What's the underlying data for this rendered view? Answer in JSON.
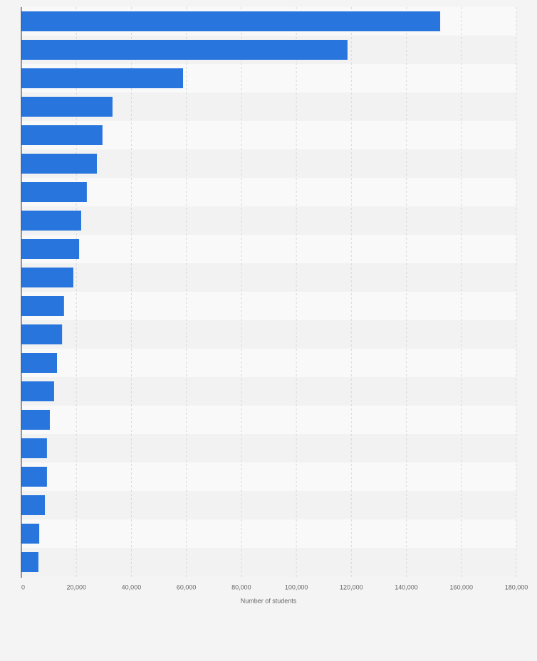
{
  "chart_data": {
    "type": "bar",
    "orientation": "horizontal",
    "categories": [
      null,
      null,
      null,
      null,
      null,
      null,
      null,
      null,
      null,
      null,
      null,
      null,
      null,
      null,
      null,
      null,
      null,
      null,
      null,
      null
    ],
    "values": [
      152300,
      118600,
      58800,
      33150,
      29500,
      27450,
      23800,
      21750,
      21000,
      18900,
      15500,
      14800,
      12950,
      11900,
      10350,
      9300,
      9300,
      8550,
      6500,
      6200
    ],
    "color": "#2876dd",
    "xlabel": "Number of students",
    "xlim": [
      0,
      180000
    ],
    "xticks": [
      0,
      {
        "value": 20000,
        "label": "20,000"
      },
      {
        "value": 40000,
        "label": "40,000"
      },
      {
        "value": 60000,
        "label": "60,000"
      },
      {
        "value": 80000,
        "label": "80,000"
      },
      {
        "value": 100000,
        "label": "100,000"
      },
      {
        "value": 120000,
        "label": "120,000"
      },
      {
        "value": 140000,
        "label": "140,000"
      },
      {
        "value": 160000,
        "label": "160,000"
      },
      {
        "value": 180000,
        "label": "180,000"
      }
    ],
    "grid": true
  }
}
